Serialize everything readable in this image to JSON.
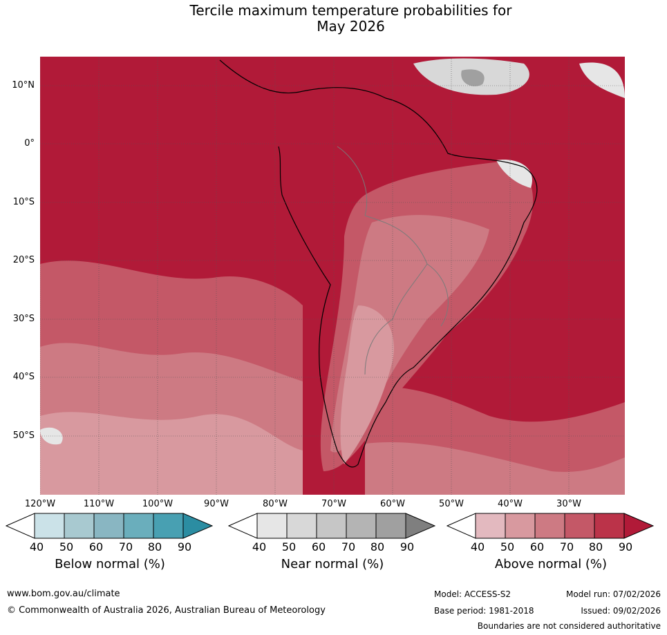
{
  "title": {
    "line1": "Tercile maximum temperature probabilities for",
    "line2": "May 2026"
  },
  "map": {
    "lat_labels": [
      "10°N",
      "0°",
      "10°S",
      "20°S",
      "30°S",
      "40°S",
      "50°S"
    ],
    "lon_labels": [
      "120°W",
      "110°W",
      "100°W",
      "90°W",
      "80°W",
      "70°W",
      "60°W",
      "50°W",
      "40°W",
      "30°W"
    ]
  },
  "legends": [
    {
      "title": "Below normal (%)",
      "ticks": [
        "40",
        "50",
        "60",
        "70",
        "80",
        "90"
      ],
      "colors": [
        "#ffffff",
        "#cbe2e8",
        "#a8c9d0",
        "#89b6c2",
        "#6aaebc",
        "#48a0b2",
        "#2b8da2"
      ]
    },
    {
      "title": "Near normal (%)",
      "ticks": [
        "40",
        "50",
        "60",
        "70",
        "80",
        "90"
      ],
      "colors": [
        "#ffffff",
        "#e6e6e6",
        "#d8d8d8",
        "#c6c6c6",
        "#b4b4b4",
        "#a0a0a0",
        "#7f7f7f"
      ]
    },
    {
      "title": "Above normal (%)",
      "ticks": [
        "40",
        "50",
        "60",
        "70",
        "80",
        "90"
      ],
      "colors": [
        "#ffffff",
        "#e3b9bf",
        "#d8999f",
        "#cd7a83",
        "#c45867",
        "#bb3349",
        "#b11a38"
      ]
    }
  ],
  "footer": {
    "website": "www.bom.gov.au/climate",
    "copyright": "© Commonwealth of Australia 2026, Australian Bureau of Meteorology",
    "model": "Model: ACCESS-S2",
    "base_period": "Base period: 1981-2018",
    "model_run": "Model run: 07/02/2026",
    "issued": "Issued: 09/02/2026",
    "disclaimer": "Boundaries are not considered authoritative"
  }
}
